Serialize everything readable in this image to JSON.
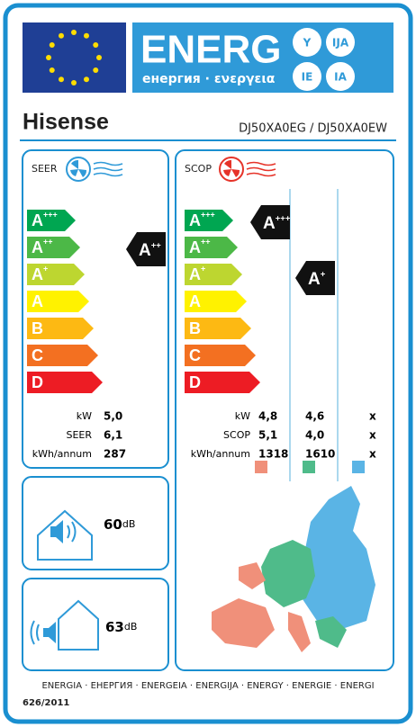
{
  "header": {
    "logo": "ENERG",
    "subtitle": "енергия · ενεργεια",
    "languages": [
      "Y",
      "IJA",
      "IE",
      "IA"
    ]
  },
  "brand": "Hisense",
  "model": "DJ50XA0EG / DJ50XA0EW",
  "classes": [
    {
      "letter": "A",
      "sup": "+++",
      "color": "#00a651"
    },
    {
      "letter": "A",
      "sup": "++",
      "color": "#4cb847"
    },
    {
      "letter": "A",
      "sup": "+",
      "color": "#bdd630"
    },
    {
      "letter": "A",
      "sup": "",
      "color": "#fff200"
    },
    {
      "letter": "B",
      "sup": "",
      "color": "#fdb913"
    },
    {
      "letter": "C",
      "sup": "",
      "color": "#f37021"
    },
    {
      "letter": "D",
      "sup": "",
      "color": "#ed1c24"
    }
  ],
  "cooling": {
    "label": "SEER",
    "rating": {
      "letter": "A",
      "sup": "++"
    },
    "rows": [
      {
        "label": "kW",
        "value": "5,0"
      },
      {
        "label": "SEER",
        "value": "6,1"
      },
      {
        "label": "kWh/annum",
        "value": "287"
      }
    ]
  },
  "heating": {
    "label": "SCOP",
    "ratings": [
      {
        "letter": "A",
        "sup": "+++"
      },
      {
        "letter": "A",
        "sup": "+"
      }
    ],
    "rows": [
      {
        "label": "kW",
        "values": [
          "4,8",
          "4,6",
          "x"
        ]
      },
      {
        "label": "SCOP",
        "values": [
          "5,1",
          "4,0",
          "x"
        ]
      },
      {
        "label": "kWh/annum",
        "values": [
          "1318",
          "1610",
          "x"
        ]
      }
    ]
  },
  "noise": [
    {
      "value": "60",
      "unit": "dB"
    },
    {
      "value": "63",
      "unit": "dB"
    }
  ],
  "footer": {
    "languages": "ENERGIA · ЕНЕРГИЯ · ЕNЕRGЕIA · ENERGIJA · ENERGY · ENERGIE · ENERGI",
    "regulation": "626/2011"
  }
}
